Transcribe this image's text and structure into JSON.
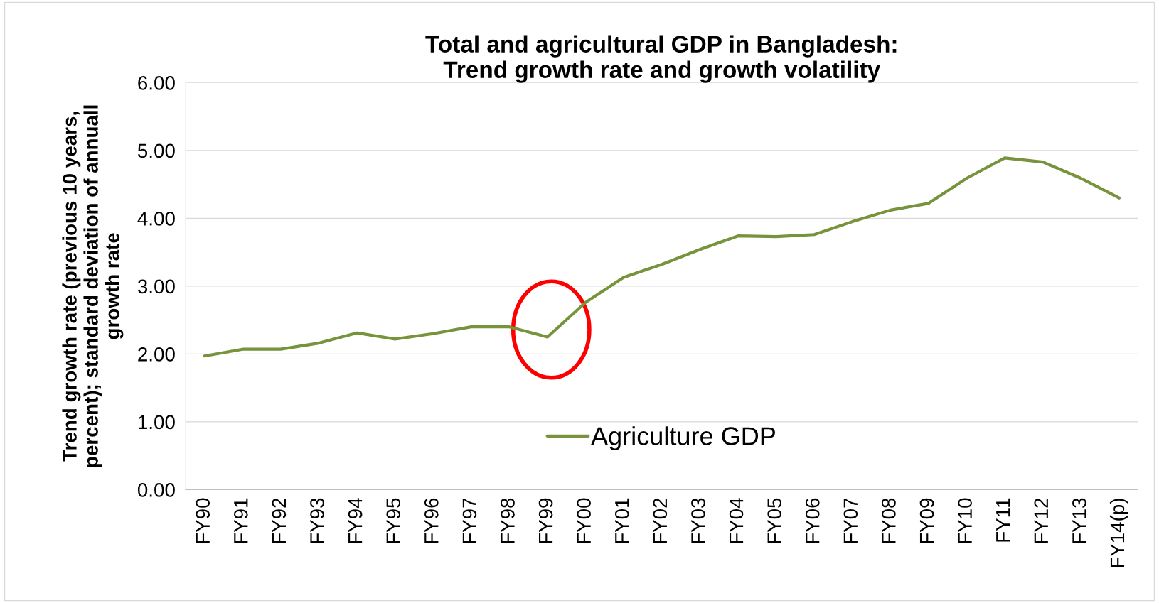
{
  "chart_data": {
    "type": "line",
    "title": "Total and agricultural GDP in Bangladesh:\nTrend growth rate and growth volatility",
    "ylabel": "Trend growth rate (previous 10 years,\npercent); standard deviation of annuall\ngrowth rate",
    "categories": [
      "FY90",
      "FY91",
      "FY92",
      "FY93",
      "FY94",
      "FY95",
      "FY96",
      "FY97",
      "FY98",
      "FY99",
      "FY00",
      "FY01",
      "FY02",
      "FY03",
      "FY04",
      "FY05",
      "FY06",
      "FY07",
      "FY08",
      "FY09",
      "FY10",
      "FY11",
      "FY12",
      "FY13",
      "FY14(p)"
    ],
    "series": [
      {
        "name": "Agriculture GDP",
        "color": "#77933c",
        "values": [
          1.97,
          2.07,
          2.07,
          2.16,
          2.31,
          2.22,
          2.3,
          2.4,
          2.4,
          2.25,
          2.76,
          3.13,
          3.32,
          3.54,
          3.74,
          3.73,
          3.76,
          3.95,
          4.12,
          4.22,
          4.59,
          4.89,
          4.83,
          4.59,
          4.3
        ]
      }
    ],
    "ylim": [
      0,
      6
    ],
    "yticks": [
      {
        "value": 0,
        "label": "0.00"
      },
      {
        "value": 1,
        "label": "1.00"
      },
      {
        "value": 2,
        "label": "2.00"
      },
      {
        "value": 3,
        "label": "3.00"
      },
      {
        "value": 4,
        "label": "4.00"
      },
      {
        "value": 5,
        "label": "5.00"
      },
      {
        "value": 6,
        "label": "6.00"
      }
    ],
    "grid": "y",
    "legend": "bottom",
    "marker": "none",
    "line_style": "solid"
  }
}
